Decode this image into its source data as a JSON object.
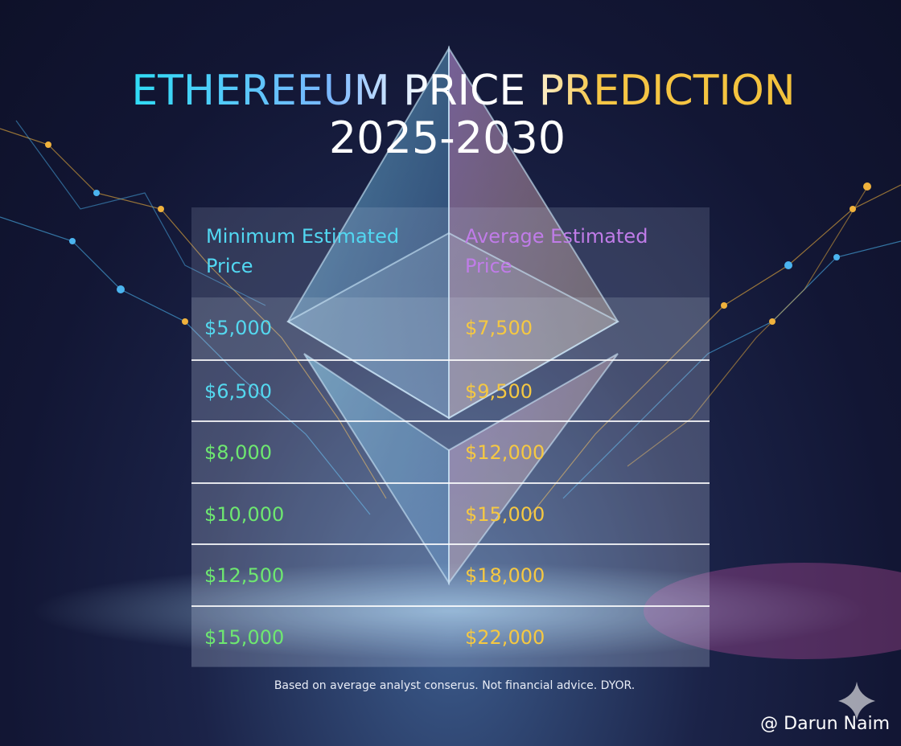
{
  "header": {
    "title": "ETHEREEUM PRICE PREDICTION",
    "subtitle": "2025-2030"
  },
  "table": {
    "columns": [
      "Minimum Estimated Price",
      "Average Estimated Price"
    ],
    "rows": [
      [
        "$5,000",
        "$7,500"
      ],
      [
        "$6,500",
        "$9,500"
      ],
      [
        "$8,000",
        "$12,000"
      ],
      [
        "$10,000",
        "$15,000"
      ],
      [
        "$12,500",
        "$18,000"
      ],
      [
        "$15,000",
        "$22,000"
      ]
    ]
  },
  "footnote": "Based on average analyst conserus. Not financial advice. DYOR.",
  "watermark": "@ Darun Naim"
}
